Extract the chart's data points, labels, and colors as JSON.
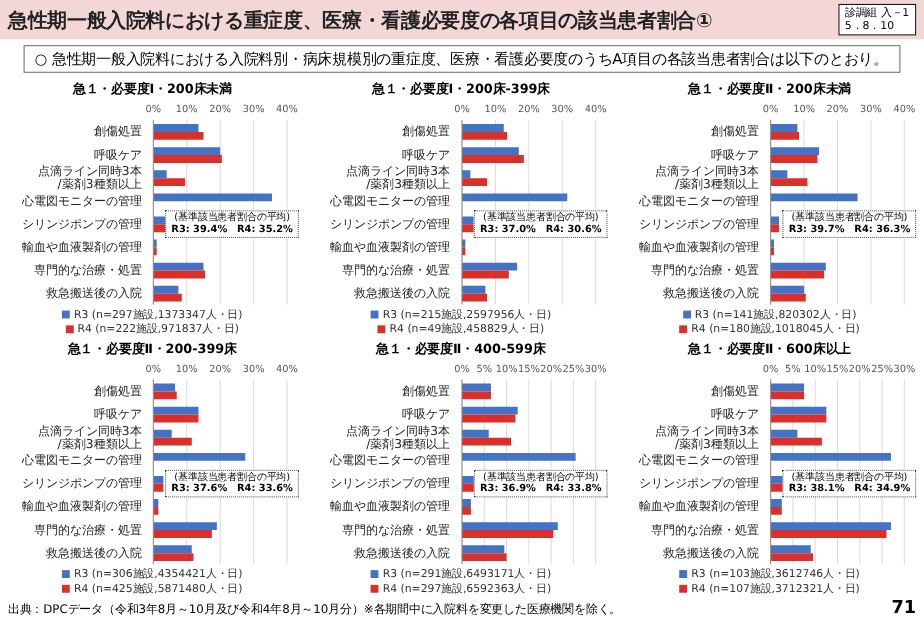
{
  "chart_data": [
    {
      "type": "other",
      "title": "急性期一般入院料における重症度、医療・看護必要度の各項目の該当患者割合①",
      "subtitle": "○ 急性期一般入院料における入院料別・病床規模別の重症度、医療・看護必要度のうちA項目の各該当患者割合は以下のとおり。",
      "annotations": [
        "診調組 入－1",
        "5．8．10",
        "出典：DPCデータ（令和3年8月～10月及び令和4年8月～10月分）※各期間中に入院料を変更した医療機関を除く。",
        "71"
      ]
    },
    {
      "type": "bar",
      "orientation": "horizontal",
      "title": "急１・必要度Ⅰ・200床未満",
      "categories": [
        "創傷処置",
        "呼吸ケア",
        "点滴ライン同時3本/薬剤3種類以上",
        "心電図モニターの管理",
        "シリンジポンプの管理",
        "輸血や血液製剤の管理",
        "専門的な治療・処置",
        "救急搬送後の入院"
      ],
      "xlim": [
        0,
        40
      ],
      "xticks": [
        {
          "value": 0,
          "label": "0%"
        },
        {
          "value": 10,
          "label": "10%"
        },
        {
          "value": 20,
          "label": "20%"
        },
        {
          "value": 30,
          "label": "30%"
        },
        {
          "value": 40,
          "label": "40%"
        }
      ],
      "grid": "x",
      "legend": "bottom",
      "annotations": [
        "(基準該当患者割合の平均)",
        "R3: 39.4%　R4: 35.2%"
      ],
      "series": [
        {
          "name": "R3 (n=297施設,1373347人・日)",
          "color": "#4472c4",
          "values": [
            13.5,
            20,
            4,
            35.5,
            4,
            1,
            15,
            7.5
          ]
        },
        {
          "name": "R4 (n=222施設,971837人・日)",
          "color": "#d9302b",
          "values": [
            15,
            20.5,
            9.5,
            null,
            4,
            1,
            15.5,
            8.5
          ]
        }
      ]
    },
    {
      "type": "bar",
      "orientation": "horizontal",
      "title": "急１・必要度Ⅰ・200床-399床",
      "categories": [
        "創傷処置",
        "呼吸ケア",
        "点滴ライン同時3本/薬剤3種類以上",
        "心電図モニターの管理",
        "シリンジポンプの管理",
        "輸血や血液製剤の管理",
        "専門的な治療・処置",
        "救急搬送後の入院"
      ],
      "xlim": [
        0,
        40
      ],
      "xticks": [
        {
          "value": 0,
          "label": "0%"
        },
        {
          "value": 10,
          "label": "10%"
        },
        {
          "value": 20,
          "label": "20%"
        },
        {
          "value": 30,
          "label": "30%"
        },
        {
          "value": 40,
          "label": "40%"
        }
      ],
      "grid": "x",
      "legend": "bottom",
      "annotations": [
        "(基準該当患者割合の平均)",
        "R3: 37.0%　R4: 30.6%"
      ],
      "series": [
        {
          "name": "R3 (n=215施設,2597956人・日)",
          "color": "#4472c4",
          "values": [
            12.5,
            17,
            2.5,
            31.5,
            3.5,
            1,
            16.5,
            7
          ]
        },
        {
          "name": "R4 (n=49施設,458829人・日)",
          "color": "#d9302b",
          "values": [
            13.5,
            18.5,
            7.5,
            null,
            3.5,
            1,
            14,
            7.5
          ]
        }
      ]
    },
    {
      "type": "bar",
      "orientation": "horizontal",
      "title": "急１・必要度Ⅱ・200床未満",
      "categories": [
        "創傷処置",
        "呼吸ケア",
        "点滴ライン同時3本/薬剤3種類以上",
        "心電図モニターの管理",
        "シリンジポンプの管理",
        "輸血や血液製剤の管理",
        "専門的な治療・処置",
        "救急搬送後の入院"
      ],
      "xlim": [
        0,
        40
      ],
      "xticks": [
        {
          "value": 0,
          "label": "0%"
        },
        {
          "value": 10,
          "label": "10%"
        },
        {
          "value": 20,
          "label": "20%"
        },
        {
          "value": 30,
          "label": "30%"
        },
        {
          "value": 40,
          "label": "40%"
        }
      ],
      "grid": "x",
      "legend": "bottom",
      "annotations": [
        "(基準該当患者割合の平均)",
        "R3: 39.7%　R4: 36.3%"
      ],
      "series": [
        {
          "name": "R3 (n=141施設,820302人・日)",
          "color": "#4472c4",
          "values": [
            8,
            14.5,
            5,
            26,
            2.5,
            1,
            16.5,
            10
          ]
        },
        {
          "name": "R4 (n=180施設,1018045人・日)",
          "color": "#d9302b",
          "values": [
            8.5,
            14,
            11,
            null,
            2.5,
            1,
            16,
            10.5
          ]
        }
      ]
    },
    {
      "type": "bar",
      "orientation": "horizontal",
      "title": "急１・必要度Ⅱ・200-399床",
      "categories": [
        "創傷処置",
        "呼吸ケア",
        "点滴ライン同時3本/薬剤3種類以上",
        "心電図モニターの管理",
        "シリンジポンプの管理",
        "輸血や血液製剤の管理",
        "専門的な治療・処置",
        "救急搬送後の入院"
      ],
      "xlim": [
        0,
        40
      ],
      "xticks": [
        {
          "value": 0,
          "label": "0%"
        },
        {
          "value": 10,
          "label": "10%"
        },
        {
          "value": 20,
          "label": "20%"
        },
        {
          "value": 30,
          "label": "30%"
        },
        {
          "value": 40,
          "label": "40%"
        }
      ],
      "grid": "x",
      "legend": "bottom",
      "annotations": [
        "(基準該当患者割合の平均)",
        "R3: 37.6%　R4: 33.6%"
      ],
      "series": [
        {
          "name": "R3 (n=306施設,4354421人・日)",
          "color": "#4472c4",
          "values": [
            6.5,
            13.5,
            5.5,
            27.5,
            3,
            1.5,
            19,
            11.5
          ]
        },
        {
          "name": "R4 (n=425施設,5871480人・日)",
          "color": "#d9302b",
          "values": [
            7,
            13.5,
            11.5,
            null,
            3,
            1.5,
            17.5,
            12
          ]
        }
      ]
    },
    {
      "type": "bar",
      "orientation": "horizontal",
      "title": "急１・必要度Ⅱ・400-599床",
      "categories": [
        "創傷処置",
        "呼吸ケア",
        "点滴ライン同時3本/薬剤3種類以上",
        "心電図モニターの管理",
        "シリンジポンプの管理",
        "輸血や血液製剤の管理",
        "専門的な治療・処置",
        "救急搬送後の入院"
      ],
      "xlim": [
        0,
        30
      ],
      "xticks": [
        {
          "value": 0,
          "label": "0%"
        },
        {
          "value": 5,
          "label": "5%"
        },
        {
          "value": 10,
          "label": "10%"
        },
        {
          "value": 15,
          "label": "15%"
        },
        {
          "value": 20,
          "label": "20%"
        },
        {
          "value": 25,
          "label": "25%"
        },
        {
          "value": 30,
          "label": "30%"
        }
      ],
      "grid": "x",
      "legend": "bottom",
      "annotations": [
        "(基準該当患者割合の平均)",
        "R3: 36.9%　R4: 33.8%"
      ],
      "series": [
        {
          "name": "R3 (n=291施設,6493171人・日)",
          "color": "#4472c4",
          "values": [
            6.5,
            12.5,
            6,
            25.5,
            3,
            2,
            21.5,
            9.5
          ]
        },
        {
          "name": "R4 (n=297施設,6592363人・日)",
          "color": "#d9302b",
          "values": [
            6.5,
            12,
            11,
            null,
            3,
            2,
            20.5,
            10
          ]
        }
      ]
    },
    {
      "type": "bar",
      "orientation": "horizontal",
      "title": "急１・必要度Ⅱ・600床以上",
      "categories": [
        "創傷処置",
        "呼吸ケア",
        "点滴ライン同時3本/薬剤3種類以上",
        "心電図モニターの管理",
        "シリンジポンプの管理",
        "輸血や血液製剤の管理",
        "専門的な治療・処置",
        "救急搬送後の入院"
      ],
      "xlim": [
        0,
        30
      ],
      "xticks": [
        {
          "value": 0,
          "label": "0%"
        },
        {
          "value": 5,
          "label": "5%"
        },
        {
          "value": 10,
          "label": "10%"
        },
        {
          "value": 15,
          "label": "15%"
        },
        {
          "value": 20,
          "label": "20%"
        },
        {
          "value": 25,
          "label": "25%"
        },
        {
          "value": 30,
          "label": "30%"
        }
      ],
      "grid": "x",
      "legend": "bottom",
      "annotations": [
        "(基準該当患者割合の平均)",
        "R3: 38.1%　R4: 34.9%"
      ],
      "series": [
        {
          "name": "R3 (n=103施設,3612746人・日)",
          "color": "#4472c4",
          "values": [
            7.5,
            12.5,
            6,
            27,
            3.5,
            2.5,
            27,
            9
          ]
        },
        {
          "name": "R4 (n=107施設,3712321人・日)",
          "color": "#d9302b",
          "values": [
            7.5,
            12.5,
            11.5,
            null,
            3.5,
            2.5,
            26,
            9.5
          ]
        }
      ]
    }
  ]
}
